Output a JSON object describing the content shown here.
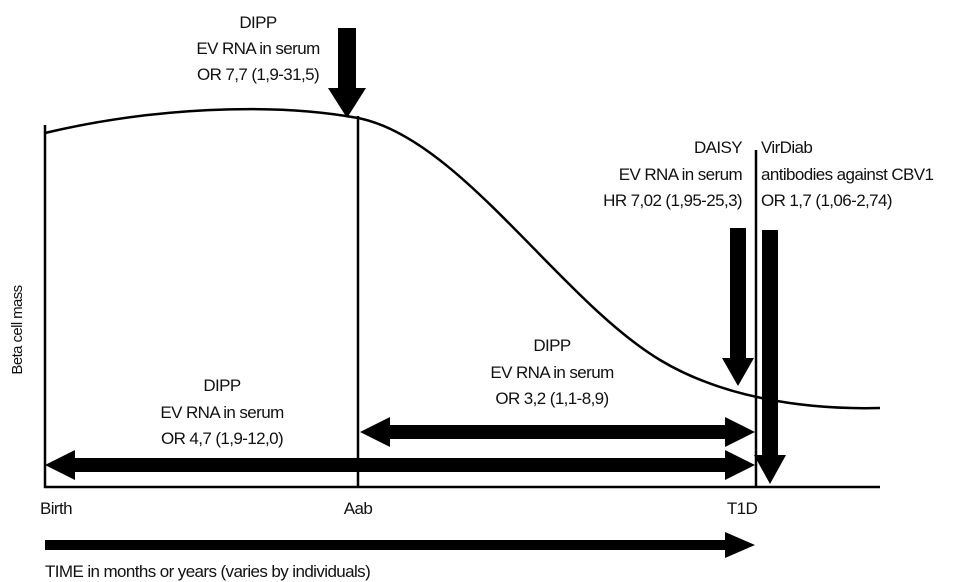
{
  "y_axis_label": "Beta cell mass",
  "x_labels": [
    "Birth",
    "Aab",
    "T1D"
  ],
  "time_label": "TIME in months or years (varies by individuals)",
  "annotations": [
    {
      "lines": [
        "DIPP",
        "EV RNA in serum",
        "OR 7,7 (1,9-31,5)"
      ]
    },
    {
      "lines": [
        "DAISY",
        "EV RNA in serum",
        "HR 7,02 (1,95-25,3)"
      ]
    },
    {
      "lines": [
        "VirDiab",
        "antibodies against CBV1",
        "OR 1,7 (1,06-2,74)"
      ]
    },
    {
      "lines": [
        "DIPP",
        "EV RNA in serum",
        "OR 3,2 (1,1-8,9)"
      ]
    },
    {
      "lines": [
        "DIPP",
        "EV RNA in serum",
        "OR 4,7 (1,9-12,0)"
      ]
    }
  ]
}
